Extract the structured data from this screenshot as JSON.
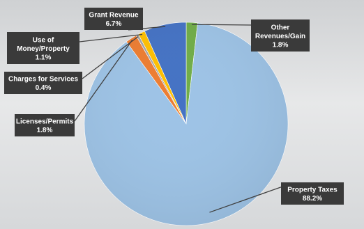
{
  "chart_data": {
    "type": "pie",
    "title": "",
    "slices": [
      {
        "label": "Property Taxes",
        "value": 88.2,
        "value_label": "88.2%",
        "color": "#9dc3e6"
      },
      {
        "label": "Licenses/Permits",
        "value": 1.8,
        "value_label": "1.8%",
        "color": "#ed7d31"
      },
      {
        "label": "Charges for Services",
        "value": 0.4,
        "value_label": "0.4%",
        "color": "#a5a5a5"
      },
      {
        "label": "Use of Money/Property",
        "value": 1.1,
        "value_label": "1.1%",
        "color": "#ffc000"
      },
      {
        "label": "Grant Revenue",
        "value": 6.7,
        "value_label": "6.7%",
        "color": "#4472c4"
      },
      {
        "label": "Other Revenues/Gain",
        "value": 1.8,
        "value_label": "1.8%",
        "color": "#70ad47"
      }
    ],
    "label_style": "callout-boxes",
    "legend": "none"
  }
}
